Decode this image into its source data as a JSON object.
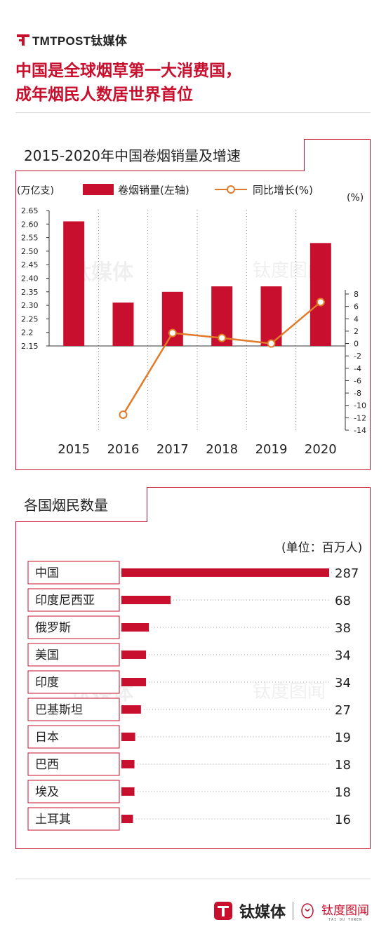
{
  "brand": {
    "name": "TMTPOST钛媒体"
  },
  "headline": {
    "line1": "中国是全球烟草第一大消费国，",
    "line2": "成年烟民人数居世界首位"
  },
  "panel1": {
    "title": "2015-2020年中国卷烟销量及增速"
  },
  "panel2": {
    "title": "各国烟民数量"
  },
  "colors": {
    "accent": "#c8102e",
    "line": "#e07b2a",
    "bar": "#c8102e"
  },
  "watermark": {
    "main": "钛媒体",
    "secondary": "钛度图闻",
    "secondary_en": "TAI DU TUWEN"
  },
  "footer": {
    "brand": "钛媒体",
    "secondary": "钛度图闻",
    "secondary_en": "TAI DU TUWEN"
  },
  "chart_data": [
    {
      "type": "bar",
      "title": "2015-2020年中国卷烟销量及增速",
      "categories": [
        "2015",
        "2016",
        "2017",
        "2018",
        "2019",
        "2020"
      ],
      "left_unit": "(万亿支)",
      "right_unit": "(%)",
      "left_ticks": [
        "2.65",
        "2.60",
        "2.55",
        "2.50",
        "2.45",
        "2.40",
        "2.35",
        "2.30",
        "2.25",
        "2.2",
        "2.15"
      ],
      "right_ticks": [
        "8",
        "6",
        "4",
        "2",
        "0",
        "-2",
        "-4",
        "-6",
        "-8",
        "-10",
        "-12",
        "-14"
      ],
      "ylim_left": [
        2.15,
        2.65
      ],
      "ylim_right": [
        -14,
        8
      ],
      "legend": {
        "bar": "卷烟销量(左轴)",
        "line": "同比增长(%)",
        "position": "top"
      },
      "series": [
        {
          "name": "卷烟销量(左轴)",
          "type": "bar",
          "axis": "left",
          "values": [
            2.61,
            2.31,
            2.35,
            2.37,
            2.37,
            2.53
          ]
        },
        {
          "name": "同比增长(%)",
          "type": "line",
          "axis": "right",
          "values": [
            null,
            -11.5,
            1.7,
            0.9,
            0.0,
            6.7
          ]
        }
      ]
    },
    {
      "type": "bar",
      "orientation": "horizontal",
      "title": "各国烟民数量",
      "unit": "(单位：百万人)",
      "categories": [
        "中国",
        "印度尼西亚",
        "俄罗斯",
        "美国",
        "印度",
        "巴基斯坦",
        "日本",
        "巴西",
        "埃及",
        "土耳其"
      ],
      "values": [
        287,
        68,
        38,
        34,
        34,
        27,
        19,
        18,
        18,
        16
      ],
      "value_labels": [
        "287",
        "68",
        "38",
        "34",
        "34",
        "27",
        "19",
        "18",
        "18",
        "16"
      ],
      "xlim": [
        0,
        287
      ]
    }
  ]
}
